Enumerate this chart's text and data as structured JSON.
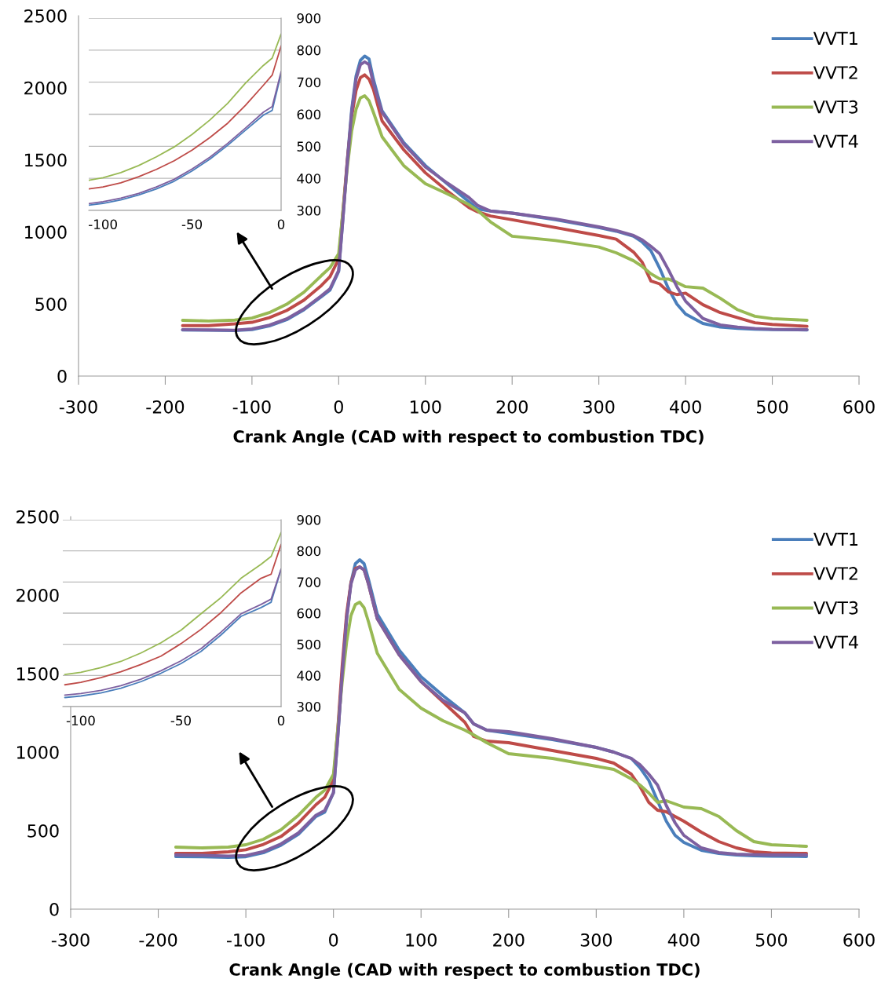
{
  "chart_data": [
    {
      "type": "line",
      "xlabel": "Crank Angle (CAD with respect to combustion TDC)",
      "xlim": [
        -300,
        600
      ],
      "xticks": [
        -300,
        -200,
        -100,
        0,
        100,
        200,
        300,
        400,
        500,
        600
      ],
      "ylim": [
        0,
        2500
      ],
      "yticks": [
        0,
        500,
        1000,
        1500,
        2000,
        2500
      ],
      "grid": false,
      "legend": "top right",
      "line_style": "solid",
      "marker": "none",
      "x": [
        -180,
        -150,
        -120,
        -100,
        -80,
        -60,
        -40,
        -20,
        -10,
        0,
        5,
        10,
        15,
        20,
        25,
        30,
        35,
        40,
        50,
        75,
        100,
        125,
        150,
        160,
        175,
        200,
        250,
        300,
        320,
        340,
        350,
        360,
        370,
        380,
        390,
        400,
        420,
        440,
        460,
        480,
        500,
        540
      ],
      "series": [
        {
          "name": "VVT1",
          "color": "#4a7ebb",
          "values": [
            320,
            318,
            316,
            322,
            348,
            391,
            460,
            550,
            597,
            726,
            1100,
            1500,
            1850,
            2080,
            2190,
            2220,
            2200,
            2060,
            1840,
            1620,
            1460,
            1335,
            1210,
            1160,
            1145,
            1130,
            1085,
            1030,
            1005,
            970,
            930,
            870,
            750,
            610,
            500,
            430,
            365,
            340,
            330,
            325,
            322,
            320
          ]
        },
        {
          "name": "VVT2",
          "color": "#be4b48",
          "values": [
            350,
            350,
            362,
            373,
            405,
            455,
            527,
            628,
            690,
            813,
            1150,
            1500,
            1800,
            1980,
            2070,
            2090,
            2060,
            1990,
            1770,
            1570,
            1410,
            1285,
            1170,
            1140,
            1110,
            1085,
            1030,
            975,
            950,
            860,
            790,
            660,
            640,
            585,
            565,
            575,
            495,
            440,
            405,
            370,
            358,
            345
          ]
        },
        {
          "name": "VVT3",
          "color": "#98b954",
          "values": [
            387,
            382,
            388,
            402,
            440,
            498,
            582,
            697,
            752,
            850,
            1150,
            1450,
            1700,
            1850,
            1930,
            1945,
            1910,
            1830,
            1660,
            1460,
            1335,
            1265,
            1190,
            1150,
            1070,
            970,
            940,
            895,
            855,
            800,
            760,
            710,
            675,
            673,
            650,
            620,
            610,
            540,
            460,
            415,
            398,
            387
          ]
        },
        {
          "name": "VVT4",
          "color": "#7d60a0",
          "values": [
            322,
            320,
            318,
            327,
            353,
            397,
            466,
            557,
            606,
            733,
            1100,
            1480,
            1830,
            2060,
            2160,
            2180,
            2160,
            2030,
            1830,
            1610,
            1450,
            1340,
            1240,
            1185,
            1145,
            1130,
            1090,
            1035,
            1010,
            975,
            945,
            900,
            850,
            740,
            620,
            520,
            400,
            355,
            340,
            330,
            325,
            322
          ]
        }
      ]
    },
    {
      "type": "line",
      "xlim": [
        -108,
        0
      ],
      "xticks": [
        -100,
        -50,
        0
      ],
      "ylim": [
        300,
        900
      ],
      "yticks": [
        300,
        400,
        500,
        600,
        700,
        800,
        900
      ],
      "grid": "y",
      "line_style": "solid",
      "marker": "none",
      "x": [
        -108,
        -100,
        -90,
        -80,
        -70,
        -60,
        -50,
        -40,
        -30,
        -20,
        -10,
        -5,
        0
      ],
      "series": [
        {
          "color": "#4a7ebb",
          "values": [
            316,
            322,
            333,
            348,
            367,
            391,
            423,
            460,
            503,
            550,
            597,
            612,
            726
          ]
        },
        {
          "color": "#be4b48",
          "values": [
            367,
            373,
            386,
            405,
            428,
            455,
            488,
            527,
            572,
            628,
            690,
            722,
            813
          ]
        },
        {
          "color": "#98b954",
          "values": [
            394,
            402,
            418,
            440,
            467,
            498,
            537,
            582,
            634,
            697,
            752,
            775,
            850
          ]
        },
        {
          "color": "#7d60a0",
          "values": [
            321,
            327,
            338,
            353,
            373,
            397,
            429,
            466,
            509,
            557,
            606,
            624,
            733
          ]
        }
      ]
    },
    {
      "type": "line",
      "xlabel": "Crank Angle (CAD with respect to combustion TDC)",
      "xlim": [
        -300,
        600
      ],
      "xticks": [
        -300,
        -200,
        -100,
        0,
        100,
        200,
        300,
        400,
        500,
        600
      ],
      "ylim": [
        0,
        2500
      ],
      "yticks": [
        0,
        500,
        1000,
        1500,
        2000,
        2500
      ],
      "grid": false,
      "legend": "top right",
      "line_style": "solid",
      "marker": "none",
      "x": [
        -180,
        -150,
        -120,
        -100,
        -80,
        -60,
        -40,
        -20,
        -10,
        0,
        5,
        10,
        15,
        20,
        25,
        30,
        35,
        40,
        50,
        75,
        100,
        125,
        150,
        160,
        175,
        200,
        250,
        300,
        320,
        340,
        350,
        360,
        370,
        380,
        390,
        400,
        420,
        440,
        460,
        480,
        500,
        540
      ],
      "series": [
        {
          "name": "VVT1",
          "color": "#4a7ebb",
          "values": [
            335,
            333,
            330,
            334,
            359,
            407,
            477,
            590,
            618,
            741,
            1100,
            1500,
            1850,
            2080,
            2200,
            2225,
            2200,
            2100,
            1880,
            1650,
            1480,
            1360,
            1250,
            1180,
            1140,
            1120,
            1080,
            1030,
            1000,
            960,
            900,
            820,
            690,
            560,
            470,
            425,
            375,
            355,
            345,
            340,
            337,
            335
          ]
        },
        {
          "name": "VVT2",
          "color": "#be4b48",
          "values": [
            355,
            355,
            365,
            378,
            412,
            462,
            548,
            665,
            712,
            821,
            1150,
            1550,
            1880,
            2080,
            2170,
            2180,
            2160,
            2070,
            1850,
            1620,
            1450,
            1320,
            1190,
            1100,
            1070,
            1060,
            1010,
            960,
            930,
            860,
            780,
            680,
            630,
            620,
            590,
            560,
            490,
            430,
            390,
            365,
            358,
            355
          ]
        },
        {
          "name": "VVT3",
          "color": "#98b954",
          "values": [
            395,
            390,
            395,
            410,
            445,
            505,
            598,
            712,
            757,
            859,
            1150,
            1450,
            1700,
            1870,
            1940,
            1955,
            1920,
            1830,
            1630,
            1400,
            1280,
            1200,
            1140,
            1110,
            1060,
            990,
            960,
            910,
            890,
            830,
            790,
            740,
            680,
            690,
            670,
            650,
            640,
            590,
            500,
            430,
            410,
            400
          ]
        },
        {
          "name": "VVT4",
          "color": "#7d60a0",
          "values": [
            345,
            343,
            338,
            342,
            367,
            415,
            486,
            598,
            628,
            742,
            1100,
            1500,
            1850,
            2070,
            2160,
            2180,
            2160,
            2070,
            1850,
            1620,
            1450,
            1330,
            1250,
            1180,
            1140,
            1130,
            1085,
            1030,
            1000,
            960,
            920,
            860,
            790,
            660,
            550,
            470,
            390,
            360,
            350,
            347,
            345,
            345
          ]
        }
      ]
    },
    {
      "type": "line",
      "xlim": [
        -109,
        0
      ],
      "xticks": [
        -100,
        -50,
        0
      ],
      "ylim": [
        300,
        900
      ],
      "yticks": [
        300,
        400,
        500,
        600,
        700,
        800,
        900
      ],
      "grid": "y",
      "line_style": "solid",
      "marker": "none",
      "x": [
        -108,
        -100,
        -90,
        -80,
        -70,
        -60,
        -50,
        -40,
        -30,
        -20,
        -10,
        -5,
        0
      ],
      "series": [
        {
          "color": "#4a7ebb",
          "values": [
            329,
            334,
            344,
            359,
            380,
            407,
            438,
            477,
            530,
            590,
            618,
            635,
            741
          ]
        },
        {
          "color": "#be4b48",
          "values": [
            370,
            378,
            393,
            412,
            435,
            462,
            502,
            548,
            602,
            665,
            712,
            725,
            821
          ]
        },
        {
          "color": "#98b954",
          "values": [
            403,
            410,
            425,
            445,
            472,
            505,
            545,
            598,
            650,
            712,
            757,
            782,
            859
          ]
        },
        {
          "color": "#7d60a0",
          "values": [
            337,
            342,
            352,
            367,
            388,
            415,
            447,
            486,
            539,
            598,
            628,
            645,
            742
          ]
        }
      ]
    }
  ]
}
